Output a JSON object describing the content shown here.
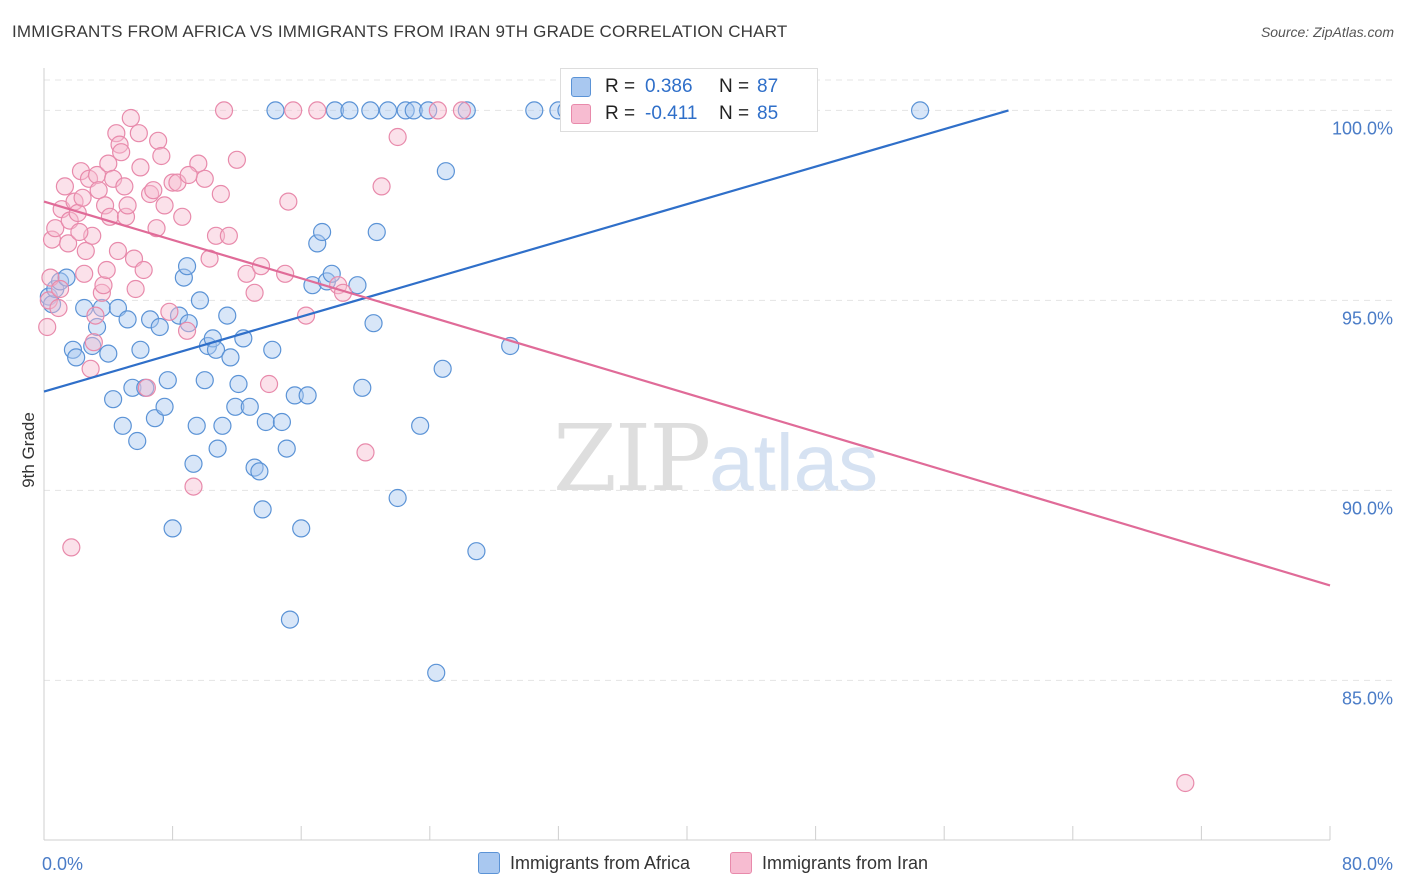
{
  "header": {
    "title": "IMMIGRANTS FROM AFRICA VS IMMIGRANTS FROM IRAN 9TH GRADE CORRELATION CHART",
    "source": "Source: ZipAtlas.com"
  },
  "watermark": {
    "zip": "ZIP",
    "atlas": "atlas"
  },
  "colors": {
    "africa_fill": "#a9c8f0",
    "africa_stroke": "#5b93d6",
    "africa_line": "#2f6fc9",
    "iran_fill": "#f7bcd1",
    "iran_stroke": "#e88aab",
    "iran_line": "#e06b98",
    "axis_value_text": "#4a7cc7"
  },
  "stats": {
    "africa": {
      "r_label": "R =",
      "r_value": "0.386",
      "n_label": "N =",
      "n_value": "87"
    },
    "iran": {
      "r_label": "R =",
      "r_value": "-0.411",
      "n_label": "N =",
      "n_value": "85"
    }
  },
  "chart_data": {
    "type": "scatter",
    "title": "IMMIGRANTS FROM AFRICA VS IMMIGRANTS FROM IRAN 9TH GRADE CORRELATION CHART",
    "xlabel": "",
    "ylabel": "9th Grade",
    "xlim": [
      0,
      80
    ],
    "ylim": [
      80.8,
      100.8
    ],
    "x_tick_labels": [
      "0.0%",
      "80.0%"
    ],
    "y_ticks": [
      85,
      90,
      95,
      100
    ],
    "y_tick_labels": [
      "85.0%",
      "90.0%",
      "95.0%",
      "100.0%"
    ],
    "legend": [
      "Immigrants from Africa",
      "Immigrants from Iran"
    ],
    "series": [
      {
        "name": "Immigrants from Africa",
        "trend": {
          "x": [
            0,
            60
          ],
          "y": [
            92.6,
            100.0
          ]
        },
        "points": [
          {
            "x": 0.3,
            "y": 95.1
          },
          {
            "x": 0.5,
            "y": 94.9
          },
          {
            "x": 0.7,
            "y": 95.3
          },
          {
            "x": 1.0,
            "y": 95.5
          },
          {
            "x": 1.4,
            "y": 95.6
          },
          {
            "x": 1.8,
            "y": 93.7
          },
          {
            "x": 2.0,
            "y": 93.5
          },
          {
            "x": 2.5,
            "y": 94.8
          },
          {
            "x": 3.0,
            "y": 93.8
          },
          {
            "x": 3.3,
            "y": 94.3
          },
          {
            "x": 3.6,
            "y": 94.8
          },
          {
            "x": 4.0,
            "y": 93.6
          },
          {
            "x": 4.3,
            "y": 92.4
          },
          {
            "x": 4.6,
            "y": 94.8
          },
          {
            "x": 4.9,
            "y": 91.7
          },
          {
            "x": 5.2,
            "y": 94.5
          },
          {
            "x": 5.5,
            "y": 92.7
          },
          {
            "x": 5.8,
            "y": 91.3
          },
          {
            "x": 6.0,
            "y": 93.7
          },
          {
            "x": 6.3,
            "y": 92.7
          },
          {
            "x": 6.6,
            "y": 94.5
          },
          {
            "x": 6.9,
            "y": 91.9
          },
          {
            "x": 7.2,
            "y": 94.3
          },
          {
            "x": 7.5,
            "y": 92.2
          },
          {
            "x": 7.7,
            "y": 92.9
          },
          {
            "x": 8.0,
            "y": 89.0
          },
          {
            "x": 8.4,
            "y": 94.6
          },
          {
            "x": 8.7,
            "y": 95.6
          },
          {
            "x": 8.9,
            "y": 95.9
          },
          {
            "x": 9.0,
            "y": 94.4
          },
          {
            "x": 9.3,
            "y": 90.7
          },
          {
            "x": 9.5,
            "y": 91.7
          },
          {
            "x": 9.7,
            "y": 95.0
          },
          {
            "x": 10.0,
            "y": 92.9
          },
          {
            "x": 10.2,
            "y": 93.8
          },
          {
            "x": 10.5,
            "y": 94.0
          },
          {
            "x": 10.7,
            "y": 93.7
          },
          {
            "x": 10.8,
            "y": 91.1
          },
          {
            "x": 11.1,
            "y": 91.7
          },
          {
            "x": 11.4,
            "y": 94.6
          },
          {
            "x": 11.6,
            "y": 93.5
          },
          {
            "x": 11.9,
            "y": 92.2
          },
          {
            "x": 12.1,
            "y": 92.8
          },
          {
            "x": 12.4,
            "y": 94.0
          },
          {
            "x": 12.8,
            "y": 92.2
          },
          {
            "x": 13.1,
            "y": 90.6
          },
          {
            "x": 13.4,
            "y": 90.5
          },
          {
            "x": 13.6,
            "y": 89.5
          },
          {
            "x": 13.8,
            "y": 91.8
          },
          {
            "x": 14.2,
            "y": 93.7
          },
          {
            "x": 14.4,
            "y": 100.0
          },
          {
            "x": 14.8,
            "y": 91.8
          },
          {
            "x": 15.1,
            "y": 91.1
          },
          {
            "x": 15.3,
            "y": 86.6
          },
          {
            "x": 15.6,
            "y": 92.5
          },
          {
            "x": 16.0,
            "y": 89.0
          },
          {
            "x": 16.4,
            "y": 92.5
          },
          {
            "x": 16.7,
            "y": 95.4
          },
          {
            "x": 17.0,
            "y": 96.5
          },
          {
            "x": 17.3,
            "y": 96.8
          },
          {
            "x": 17.6,
            "y": 95.5
          },
          {
            "x": 17.9,
            "y": 95.7
          },
          {
            "x": 18.1,
            "y": 100.0
          },
          {
            "x": 19.0,
            "y": 100.0
          },
          {
            "x": 19.5,
            "y": 95.4
          },
          {
            "x": 19.8,
            "y": 92.7
          },
          {
            "x": 20.3,
            "y": 100.0
          },
          {
            "x": 20.5,
            "y": 94.4
          },
          {
            "x": 20.7,
            "y": 96.8
          },
          {
            "x": 21.4,
            "y": 100.0
          },
          {
            "x": 22.0,
            "y": 89.8
          },
          {
            "x": 22.5,
            "y": 100.0
          },
          {
            "x": 23.0,
            "y": 100.0
          },
          {
            "x": 23.4,
            "y": 91.7
          },
          {
            "x": 23.9,
            "y": 100.0
          },
          {
            "x": 24.4,
            "y": 85.2
          },
          {
            "x": 24.8,
            "y": 93.2
          },
          {
            "x": 25.0,
            "y": 98.4
          },
          {
            "x": 26.3,
            "y": 100.0
          },
          {
            "x": 26.9,
            "y": 88.4
          },
          {
            "x": 29.0,
            "y": 93.8
          },
          {
            "x": 30.5,
            "y": 100.0
          },
          {
            "x": 32.0,
            "y": 100.0
          },
          {
            "x": 32.5,
            "y": 100.0
          },
          {
            "x": 33.0,
            "y": 100.0
          },
          {
            "x": 35.0,
            "y": 100.0
          },
          {
            "x": 54.5,
            "y": 100.0
          }
        ]
      },
      {
        "name": "Immigrants from Iran",
        "trend": {
          "x": [
            0,
            80
          ],
          "y": [
            97.6,
            87.5
          ]
        },
        "points": [
          {
            "x": 0.2,
            "y": 94.3
          },
          {
            "x": 0.3,
            "y": 95.0
          },
          {
            "x": 0.4,
            "y": 95.6
          },
          {
            "x": 0.5,
            "y": 96.6
          },
          {
            "x": 0.7,
            "y": 96.9
          },
          {
            "x": 0.9,
            "y": 94.8
          },
          {
            "x": 1.1,
            "y": 97.4
          },
          {
            "x": 1.3,
            "y": 98.0
          },
          {
            "x": 1.5,
            "y": 96.5
          },
          {
            "x": 1.6,
            "y": 97.1
          },
          {
            "x": 1.7,
            "y": 88.5
          },
          {
            "x": 1.9,
            "y": 97.6
          },
          {
            "x": 2.1,
            "y": 97.3
          },
          {
            "x": 2.3,
            "y": 98.4
          },
          {
            "x": 2.4,
            "y": 97.7
          },
          {
            "x": 2.5,
            "y": 95.7
          },
          {
            "x": 2.6,
            "y": 96.3
          },
          {
            "x": 2.8,
            "y": 98.2
          },
          {
            "x": 2.9,
            "y": 93.2
          },
          {
            "x": 3.0,
            "y": 96.7
          },
          {
            "x": 3.1,
            "y": 93.9
          },
          {
            "x": 3.2,
            "y": 94.6
          },
          {
            "x": 3.3,
            "y": 98.3
          },
          {
            "x": 3.4,
            "y": 97.9
          },
          {
            "x": 3.6,
            "y": 95.2
          },
          {
            "x": 3.7,
            "y": 95.4
          },
          {
            "x": 3.8,
            "y": 97.5
          },
          {
            "x": 4.0,
            "y": 98.6
          },
          {
            "x": 4.1,
            "y": 97.2
          },
          {
            "x": 4.3,
            "y": 98.2
          },
          {
            "x": 4.5,
            "y": 99.4
          },
          {
            "x": 4.6,
            "y": 96.3
          },
          {
            "x": 4.7,
            "y": 99.1
          },
          {
            "x": 4.8,
            "y": 98.9
          },
          {
            "x": 5.0,
            "y": 98.0
          },
          {
            "x": 5.1,
            "y": 97.2
          },
          {
            "x": 5.2,
            "y": 97.5
          },
          {
            "x": 5.4,
            "y": 99.8
          },
          {
            "x": 5.6,
            "y": 96.1
          },
          {
            "x": 5.7,
            "y": 95.3
          },
          {
            "x": 5.9,
            "y": 99.4
          },
          {
            "x": 6.2,
            "y": 95.8
          },
          {
            "x": 6.4,
            "y": 92.7
          },
          {
            "x": 6.6,
            "y": 97.8
          },
          {
            "x": 6.8,
            "y": 97.9
          },
          {
            "x": 7.0,
            "y": 96.9
          },
          {
            "x": 7.1,
            "y": 99.2
          },
          {
            "x": 7.3,
            "y": 98.8
          },
          {
            "x": 7.5,
            "y": 97.5
          },
          {
            "x": 7.8,
            "y": 94.7
          },
          {
            "x": 8.0,
            "y": 98.1
          },
          {
            "x": 8.3,
            "y": 98.1
          },
          {
            "x": 8.6,
            "y": 97.2
          },
          {
            "x": 8.9,
            "y": 94.2
          },
          {
            "x": 9.3,
            "y": 90.1
          },
          {
            "x": 9.6,
            "y": 98.6
          },
          {
            "x": 10.0,
            "y": 98.2
          },
          {
            "x": 10.3,
            "y": 96.1
          },
          {
            "x": 10.7,
            "y": 96.7
          },
          {
            "x": 11.0,
            "y": 97.8
          },
          {
            "x": 11.2,
            "y": 100.0
          },
          {
            "x": 11.5,
            "y": 96.7
          },
          {
            "x": 12.0,
            "y": 98.7
          },
          {
            "x": 12.6,
            "y": 95.7
          },
          {
            "x": 13.1,
            "y": 95.2
          },
          {
            "x": 13.5,
            "y": 95.9
          },
          {
            "x": 14.0,
            "y": 92.8
          },
          {
            "x": 15.0,
            "y": 95.7
          },
          {
            "x": 15.2,
            "y": 97.6
          },
          {
            "x": 15.5,
            "y": 100.0
          },
          {
            "x": 16.3,
            "y": 94.6
          },
          {
            "x": 17.0,
            "y": 100.0
          },
          {
            "x": 18.3,
            "y": 95.4
          },
          {
            "x": 18.6,
            "y": 95.2
          },
          {
            "x": 20.0,
            "y": 91.0
          },
          {
            "x": 21.0,
            "y": 98.0
          },
          {
            "x": 22.0,
            "y": 99.3
          },
          {
            "x": 24.5,
            "y": 100.0
          },
          {
            "x": 26.0,
            "y": 100.0
          },
          {
            "x": 71.0,
            "y": 82.3
          },
          {
            "x": 2.2,
            "y": 96.8
          },
          {
            "x": 1.0,
            "y": 95.3
          },
          {
            "x": 6.0,
            "y": 98.5
          },
          {
            "x": 9.0,
            "y": 98.3
          },
          {
            "x": 3.9,
            "y": 95.8
          }
        ]
      }
    ]
  },
  "legend_bottom": {
    "africa_label": "Immigrants from Africa",
    "iran_label": "Immigrants from Iran"
  }
}
